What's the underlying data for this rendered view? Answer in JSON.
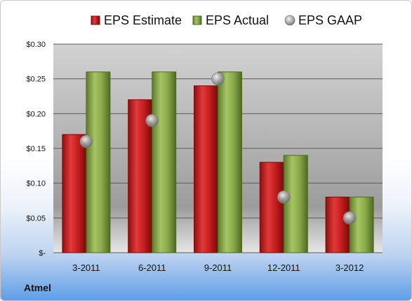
{
  "company": "Atmel",
  "chart_data": {
    "type": "bar",
    "categories": [
      "3-2011",
      "6-2011",
      "9-2011",
      "12-2011",
      "3-2012"
    ],
    "series": [
      {
        "name": "EPS Estimate",
        "type": "bar",
        "color": "#c41e1e",
        "values": [
          0.17,
          0.22,
          0.24,
          0.13,
          0.08
        ]
      },
      {
        "name": "EPS Actual",
        "type": "bar",
        "color": "#8aaa4a",
        "values": [
          0.26,
          0.26,
          0.26,
          0.14,
          0.08
        ]
      },
      {
        "name": "EPS GAAP",
        "type": "scatter",
        "color": "#a6a6a6",
        "values": [
          0.16,
          0.19,
          0.25,
          0.08,
          0.05
        ]
      }
    ],
    "ylim": [
      0,
      0.3
    ],
    "yticks": [
      0,
      0.05,
      0.1,
      0.15,
      0.2,
      0.25,
      0.3
    ],
    "ytick_labels": [
      "$-",
      "$0.05",
      "$0.10",
      "$0.15",
      "$0.20",
      "$0.25",
      "$0.30"
    ],
    "grid": true,
    "legend": "top"
  }
}
